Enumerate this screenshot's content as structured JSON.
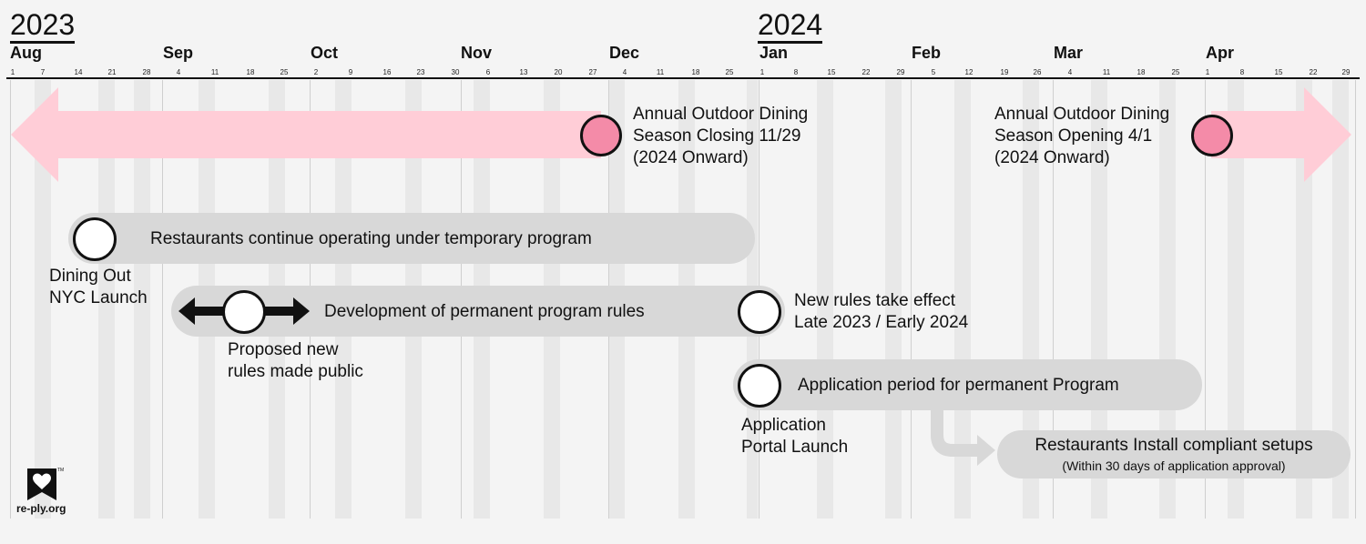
{
  "years": [
    "2023",
    "2024"
  ],
  "months": [
    "Aug",
    "Sep",
    "Oct",
    "Nov",
    "Dec",
    "Jan",
    "Feb",
    "Mar",
    "Apr"
  ],
  "week_days": [
    [
      "1",
      "7",
      "14",
      "21",
      "28"
    ],
    [
      "4",
      "11",
      "18",
      "25"
    ],
    [
      "2",
      "9",
      "16",
      "23",
      "30"
    ],
    [
      "6",
      "13",
      "20",
      "27"
    ],
    [
      "4",
      "11",
      "18",
      "25"
    ],
    [
      "1",
      "8",
      "15",
      "22",
      "29"
    ],
    [
      "5",
      "12",
      "19",
      "26"
    ],
    [
      "4",
      "11",
      "18",
      "25"
    ],
    [
      "1",
      "8",
      "15",
      "22",
      "29"
    ]
  ],
  "season_closing": {
    "line1": "Annual Outdoor Dining",
    "line2": "Season Closing 11/29",
    "line3": "(2024 Onward)"
  },
  "season_opening": {
    "line1": "Annual Outdoor Dining",
    "line2": "Season Opening 4/1",
    "line3": "(2024 Onward)"
  },
  "temporary_program": "Restaurants continue operating under temporary program",
  "dining_out_launch": {
    "line1": "Dining Out",
    "line2": "NYC Launch"
  },
  "development": "Development of permanent program rules",
  "proposed_rules": {
    "line1": "Proposed new",
    "line2": "rules made public"
  },
  "new_rules": {
    "line1": "New rules take effect",
    "line2": "Late 2023 / Early 2024"
  },
  "application_period": "Application period for permanent Program",
  "portal_launch": {
    "line1": "Application",
    "line2": "Portal Launch"
  },
  "install": {
    "title": "Restaurants Install compliant setups",
    "note": "(Within 30 days of application approval)"
  },
  "logo_text": "re-ply.org",
  "colors": {
    "pink": "#ffcdd7",
    "pink_dot": "#f48ba8",
    "pill": "#d8d8d8",
    "arrow": "#111111",
    "grid_band": "#e8e8e8"
  }
}
